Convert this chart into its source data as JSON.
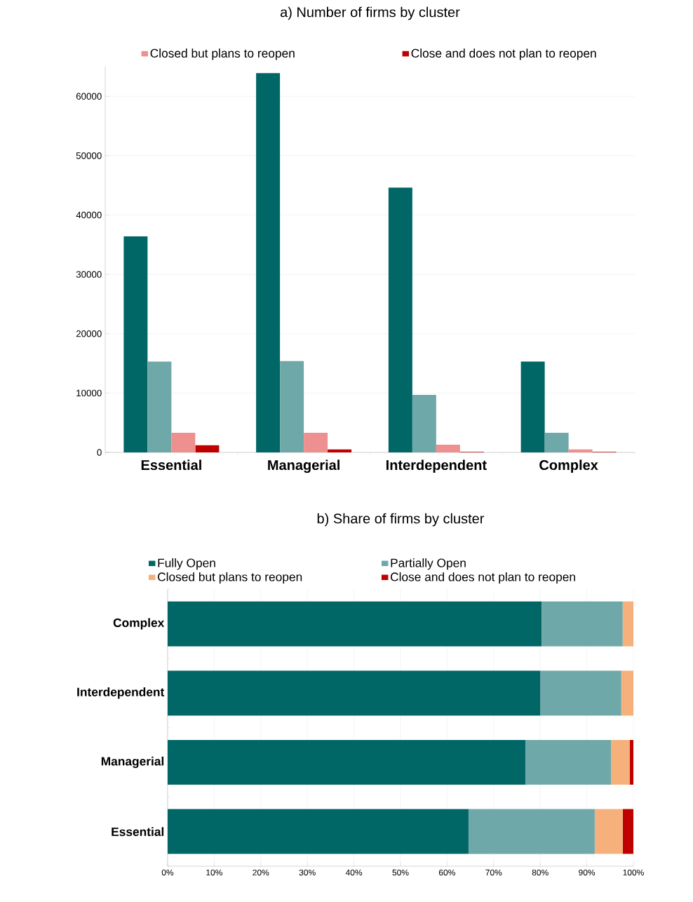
{
  "chart_data": [
    {
      "type": "bar",
      "title": "a) Number of firms by cluster",
      "categories": [
        "Essential",
        "Managerial",
        "Interdependent",
        "Complex"
      ],
      "series": [
        {
          "color": "#006666",
          "values": [
            36400,
            63900,
            44600,
            15300
          ]
        },
        {
          "color": "#6fa8a8",
          "values": [
            15300,
            15400,
            9700,
            3300
          ]
        },
        {
          "name": "Closed but plans to reopen",
          "color": "#ee9090",
          "values": [
            3300,
            3300,
            1300,
            500
          ]
        },
        {
          "name": "Close and does not plan to reopen",
          "color": "#c00000",
          "values": [
            1200,
            500,
            100,
            100
          ]
        }
      ],
      "ylim": [
        0,
        65000
      ],
      "yticks": [
        0,
        10000,
        20000,
        30000,
        40000,
        50000,
        60000
      ],
      "grid": "y",
      "legend": "top"
    },
    {
      "type": "bar",
      "orientation": "horizontal",
      "stacked": true,
      "title": "b) Share of firms by cluster",
      "categories": [
        "Complex",
        "Interdependent",
        "Managerial",
        "Essential"
      ],
      "series": [
        {
          "name": "Fully Open",
          "color": "#006666",
          "values": [
            80.3,
            80.0,
            76.8,
            64.6
          ]
        },
        {
          "name": "Partially Open",
          "color": "#6fa8a8",
          "values": [
            17.4,
            17.4,
            18.4,
            27.1
          ]
        },
        {
          "name": "Closed but plans to reopen",
          "color": "#f5b07c",
          "values": [
            2.3,
            2.6,
            4.0,
            6.0
          ]
        },
        {
          "name": "Close and does not plan to reopen",
          "color": "#c00000",
          "values": [
            null,
            null,
            0.8,
            2.3
          ]
        }
      ],
      "xlim": [
        0,
        100
      ],
      "xticks": [
        {
          "value": 0,
          "label": "0%"
        },
        {
          "value": 10,
          "label": "10%"
        },
        {
          "value": 20,
          "label": "20%"
        },
        {
          "value": 30,
          "label": "30%"
        },
        {
          "value": 40,
          "label": "40%"
        },
        {
          "value": 50,
          "label": "50%"
        },
        {
          "value": 60,
          "label": "60%"
        },
        {
          "value": 70,
          "label": "70%"
        },
        {
          "value": 80,
          "label": "80%"
        },
        {
          "value": 90,
          "label": "90%"
        },
        {
          "value": 100,
          "label": "100%"
        }
      ],
      "grid": "x",
      "legend": "top"
    }
  ]
}
